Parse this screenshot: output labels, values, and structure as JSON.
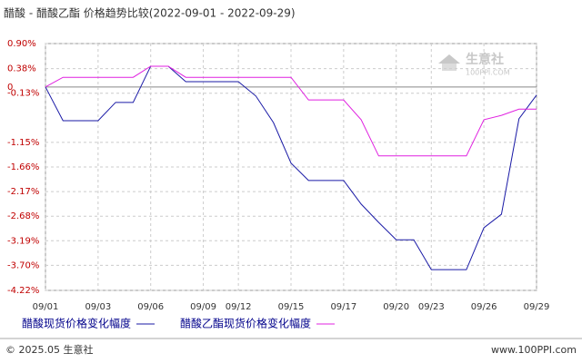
{
  "chart_data": {
    "type": "line",
    "title": "醋酸 - 醋酸乙酯 价格趋势比较(2022-09-01 - 2022-09-29)",
    "categories": [
      "09/01",
      null,
      null,
      "09/03",
      null,
      null,
      "09/06",
      null,
      null,
      "09/09",
      null,
      "09/12",
      null,
      null,
      "09/15",
      null,
      null,
      "09/17",
      null,
      null,
      "09/20",
      null,
      "09/23",
      null,
      null,
      "09/26",
      null,
      null,
      "09/29"
    ],
    "series": [
      {
        "name": "醋酸现货价格变化幅度",
        "color": "#1a1aa6",
        "values": [
          0,
          -0.7,
          -0.7,
          -0.7,
          -0.32,
          -0.32,
          0.43,
          0.43,
          0.11,
          0.11,
          0.11,
          0.11,
          -0.19,
          -0.74,
          -1.58,
          -1.94,
          -1.94,
          -1.94,
          -2.43,
          -2.81,
          -3.17,
          -3.17,
          -3.79,
          -3.79,
          -3.79,
          -2.92,
          -2.64,
          -0.66,
          -0.17
        ]
      },
      {
        "name": "醋酸乙酯现货价格变化幅度",
        "color": "#e020e0",
        "values": [
          0,
          0.2,
          0.2,
          0.2,
          0.2,
          0.2,
          0.43,
          0.43,
          0.2,
          0.2,
          0.2,
          0.2,
          0.2,
          0.2,
          0.2,
          -0.27,
          -0.27,
          -0.27,
          -0.68,
          -1.43,
          -1.43,
          -1.43,
          -1.43,
          -1.43,
          -1.43,
          -0.68,
          -0.59,
          -0.46,
          -0.46
        ]
      }
    ],
    "ylim": [
      -4.22,
      0.9
    ],
    "yticks": [
      {
        "value": 0.9,
        "label": "0.90%"
      },
      {
        "value": 0.38,
        "label": "0.38%"
      },
      {
        "value": -0.13,
        "label": "-0.13%"
      },
      0,
      {
        "value": -1.15,
        "label": "-1.15%"
      },
      {
        "value": -1.66,
        "label": "-1.66%"
      },
      {
        "value": -2.17,
        "label": "-2.17%"
      },
      {
        "value": -2.68,
        "label": "-2.68%"
      },
      {
        "value": -3.19,
        "label": "-3.19%"
      },
      {
        "value": -3.7,
        "label": "-3.70%"
      },
      {
        "value": -4.22,
        "label": "-4.22%"
      }
    ],
    "grid": true,
    "watermark": {
      "name": "生意社",
      "url": "100PPI.COM"
    },
    "footer": {
      "left": "© 2025.05 生意社",
      "right": "www.100PPI.com"
    }
  }
}
